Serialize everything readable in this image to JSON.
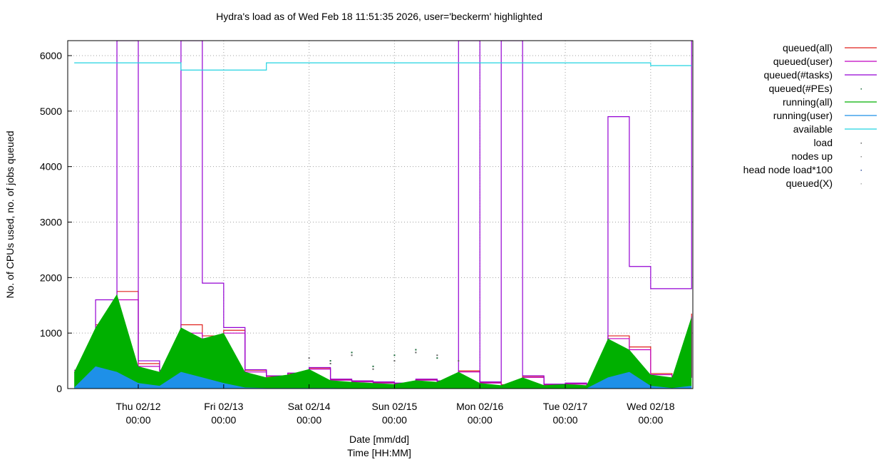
{
  "chart_data": {
    "type": "line",
    "title": "Hydra's load as of Wed Feb 18 11:51:35 2026, user='beckerm' highlighted",
    "y_label": "No. of CPUs used, no. of jobs queued",
    "x_label": "Date [mm/dd]",
    "x_sublabel": "Time [HH:MM]",
    "xlim": [
      "02/11 04:10",
      "02/18 11:51"
    ],
    "ylim": [
      0,
      6270
    ],
    "yticks": [
      0,
      1000,
      2000,
      3000,
      4000,
      5000,
      6000
    ],
    "xticks": [
      {
        "value": "02/12 00:00",
        "label": "Thu 02/12",
        "time": "00:00"
      },
      {
        "value": "02/13 00:00",
        "label": "Fri 02/13",
        "time": "00:00"
      },
      {
        "value": "02/14 00:00",
        "label": "Sat 02/14",
        "time": "00:00"
      },
      {
        "value": "02/15 00:00",
        "label": "Sun 02/15",
        "time": "00:00"
      },
      {
        "value": "02/16 00:00",
        "label": "Mon 02/16",
        "time": "00:00"
      },
      {
        "value": "02/17 00:00",
        "label": "Tue 02/17",
        "time": "00:00"
      },
      {
        "value": "02/18 00:00",
        "label": "Wed 02/18",
        "time": "00:00"
      }
    ],
    "grid": true,
    "legend": "right",
    "x": [
      "02/11 06:00",
      "02/11 12:00",
      "02/11 18:00",
      "02/12 00:00",
      "02/12 06:00",
      "02/12 12:00",
      "02/12 18:00",
      "02/13 00:00",
      "02/13 06:00",
      "02/13 12:00",
      "02/13 18:00",
      "02/14 00:00",
      "02/14 06:00",
      "02/14 12:00",
      "02/14 18:00",
      "02/15 00:00",
      "02/15 06:00",
      "02/15 12:00",
      "02/15 18:00",
      "02/16 00:00",
      "02/16 06:00",
      "02/16 12:00",
      "02/16 18:00",
      "02/17 00:00",
      "02/17 06:00",
      "02/17 12:00",
      "02/17 18:00",
      "02/18 00:00",
      "02/18 06:00",
      "02/18 11:30"
    ],
    "series": [
      {
        "name": "queued(all)",
        "color": "#e0201c",
        "style": "line",
        "values": [
          330,
          1150,
          1750,
          450,
          320,
          1150,
          950,
          1050,
          330,
          220,
          270,
          370,
          160,
          130,
          110,
          90,
          160,
          130,
          320,
          110,
          70,
          220,
          70,
          90,
          70,
          950,
          750,
          270,
          220,
          1350
        ]
      },
      {
        "name": "queued(user)",
        "color": "#c000c0",
        "style": "line",
        "values": [
          300,
          1000,
          1600,
          400,
          300,
          1000,
          900,
          1000,
          300,
          200,
          250,
          350,
          150,
          120,
          100,
          80,
          150,
          120,
          300,
          100,
          60,
          200,
          60,
          80,
          60,
          900,
          700,
          250,
          200,
          1300
        ]
      },
      {
        "name": "queued(#tasks)",
        "color": "#9400d3",
        "style": "line",
        "values": [
          330,
          1600,
          6270,
          500,
          330,
          6270,
          1900,
          1100,
          340,
          230,
          280,
          380,
          170,
          140,
          120,
          100,
          170,
          140,
          6270,
          120,
          6270,
          230,
          80,
          100,
          80,
          4900,
          2200,
          1800,
          1800,
          6270
        ]
      },
      {
        "name": "queued(#PEs)",
        "color": "#1a6b3a",
        "style": "points",
        "values": [
          null,
          null,
          null,
          null,
          null,
          null,
          null,
          null,
          null,
          null,
          null,
          null,
          500,
          650,
          400,
          600,
          700,
          550,
          null,
          null,
          null,
          null,
          null,
          null,
          null,
          null,
          null,
          null,
          null,
          null
        ]
      },
      {
        "name": "running(all)",
        "color": "#00b000",
        "style": "area",
        "values": [
          300,
          1100,
          1700,
          400,
          300,
          1100,
          900,
          1000,
          300,
          200,
          250,
          350,
          150,
          120,
          100,
          80,
          150,
          120,
          300,
          100,
          60,
          200,
          60,
          80,
          60,
          900,
          700,
          250,
          200,
          1300
        ]
      },
      {
        "name": "running(user)",
        "color": "#1e90e8",
        "style": "area",
        "values": [
          20,
          400,
          300,
          100,
          50,
          300,
          200,
          100,
          20,
          10,
          10,
          10,
          10,
          5,
          5,
          5,
          5,
          5,
          5,
          5,
          5,
          5,
          5,
          5,
          5,
          200,
          300,
          50,
          10,
          50
        ]
      },
      {
        "name": "available",
        "color": "#22d3e0",
        "style": "line",
        "values": [
          5870,
          5870,
          5870,
          5870,
          5870,
          5740,
          5740,
          5740,
          5740,
          5870,
          5870,
          5870,
          5870,
          5870,
          5870,
          5870,
          5870,
          5870,
          5870,
          5870,
          5870,
          5870,
          5870,
          5870,
          5870,
          5870,
          5870,
          5820,
          5820,
          5820
        ]
      },
      {
        "name": "load",
        "color": "#606060",
        "style": "points",
        "values": [
          null,
          null,
          null,
          null,
          null,
          null,
          null,
          null,
          null,
          null,
          null,
          550,
          450,
          600,
          350,
          500,
          650,
          600,
          500,
          null,
          null,
          null,
          null,
          null,
          null,
          null,
          null,
          null,
          null,
          null
        ]
      },
      {
        "name": "nodes up",
        "color": "#909090",
        "style": "points",
        "values": [
          null,
          null,
          null,
          null,
          null,
          null,
          null,
          null,
          null,
          null,
          null,
          null,
          null,
          null,
          null,
          null,
          null,
          null,
          null,
          null,
          null,
          null,
          null,
          null,
          null,
          null,
          null,
          null,
          null,
          null
        ]
      },
      {
        "name": "head node load*100",
        "color": "#3050a0",
        "style": "points",
        "values": [
          null,
          null,
          null,
          null,
          null,
          null,
          null,
          null,
          null,
          null,
          null,
          null,
          null,
          null,
          null,
          null,
          null,
          null,
          null,
          null,
          null,
          null,
          null,
          null,
          null,
          null,
          null,
          null,
          null,
          null
        ]
      },
      {
        "name": "queued(X)",
        "color": "#b0b0b0",
        "style": "points",
        "values": [
          null,
          null,
          null,
          null,
          null,
          null,
          null,
          null,
          null,
          null,
          null,
          null,
          null,
          null,
          null,
          null,
          null,
          null,
          null,
          null,
          null,
          null,
          null,
          null,
          null,
          null,
          null,
          null,
          null,
          null
        ]
      }
    ]
  }
}
